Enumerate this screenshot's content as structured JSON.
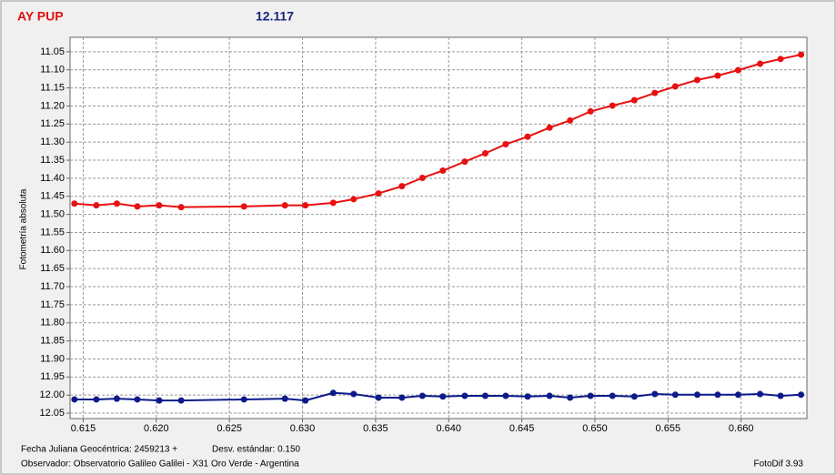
{
  "chart_data": {
    "type": "line",
    "title": "AY PUP",
    "title_color": "#e01010",
    "subtitle": "12.117",
    "subtitle_color": "#1a237e",
    "y_label": "Fotometría absoluta",
    "footer_left": [
      "Fecha Juliana Geocéntrica: 2459213 +",
      "Observador: Observatorio Galileo Galilei - X31 Oro Verde - Argentina"
    ],
    "footer_middle": "Desv. estándar: 0.150",
    "footer_right": "FotoDif 3.93",
    "x": [
      0.6144,
      0.6159,
      0.6173,
      0.6187,
      0.6202,
      0.6217,
      0.626,
      0.6288,
      0.6302,
      0.6321,
      0.6335,
      0.6352,
      0.6368,
      0.6382,
      0.6396,
      0.6411,
      0.6425,
      0.6439,
      0.6454,
      0.6469,
      0.6483,
      0.6497,
      0.6512,
      0.6527,
      0.6541,
      0.6555,
      0.657,
      0.6584,
      0.6598,
      0.6613,
      0.6627,
      0.6641
    ],
    "series": [
      {
        "color": "#e81010",
        "values": [
          11.47,
          11.475,
          11.47,
          11.478,
          11.475,
          11.48,
          11.478,
          11.475,
          11.475,
          11.468,
          11.458,
          11.442,
          11.422,
          11.399,
          11.379,
          11.354,
          11.331,
          11.306,
          11.285,
          11.26,
          11.24,
          11.215,
          11.199,
          11.184,
          11.164,
          11.146,
          11.128,
          11.116,
          11.101,
          11.083,
          11.07,
          11.058
        ]
      },
      {
        "color": "#0d1a8a",
        "values": [
          12.012,
          12.012,
          12.01,
          12.012,
          12.015,
          12.015,
          12.012,
          12.01,
          12.015,
          11.994,
          11.997,
          12.007,
          12.007,
          12.002,
          12.004,
          12.002,
          12.002,
          12.002,
          12.004,
          12.002,
          12.007,
          12.002,
          12.002,
          12.004,
          11.997,
          11.999,
          11.999,
          11.999,
          11.999,
          11.997,
          12.002,
          11.999
        ]
      }
    ],
    "xlim": [
      0.6141,
      0.6645
    ],
    "xticks": [
      0.615,
      {
        "value": 0.62,
        "label": "0.620"
      },
      0.625,
      {
        "value": 0.63,
        "label": "0.630"
      },
      0.635,
      {
        "value": 0.64,
        "label": "0.640"
      },
      0.645,
      {
        "value": 0.65,
        "label": "0.650"
      },
      0.655,
      {
        "value": 0.66,
        "label": "0.660"
      }
    ],
    "ylim": [
      11.01,
      12.065
    ],
    "y_inverted": true,
    "yticks": [
      11.05,
      {
        "value": 11.1,
        "label": "11.10"
      },
      11.15,
      {
        "value": 11.2,
        "label": "11.20"
      },
      11.25,
      {
        "value": 11.3,
        "label": "11.30"
      },
      11.35,
      {
        "value": 11.4,
        "label": "11.40"
      },
      11.45,
      {
        "value": 11.5,
        "label": "11.50"
      },
      11.55,
      {
        "value": 11.6,
        "label": "11.60"
      },
      11.65,
      {
        "value": 11.7,
        "label": "11.70"
      },
      11.75,
      {
        "value": 11.8,
        "label": "11.80"
      },
      11.85,
      {
        "value": 11.9,
        "label": "11.90"
      },
      11.95,
      {
        "value": 12,
        "label": "12.00"
      },
      12.05
    ],
    "grid": true
  }
}
